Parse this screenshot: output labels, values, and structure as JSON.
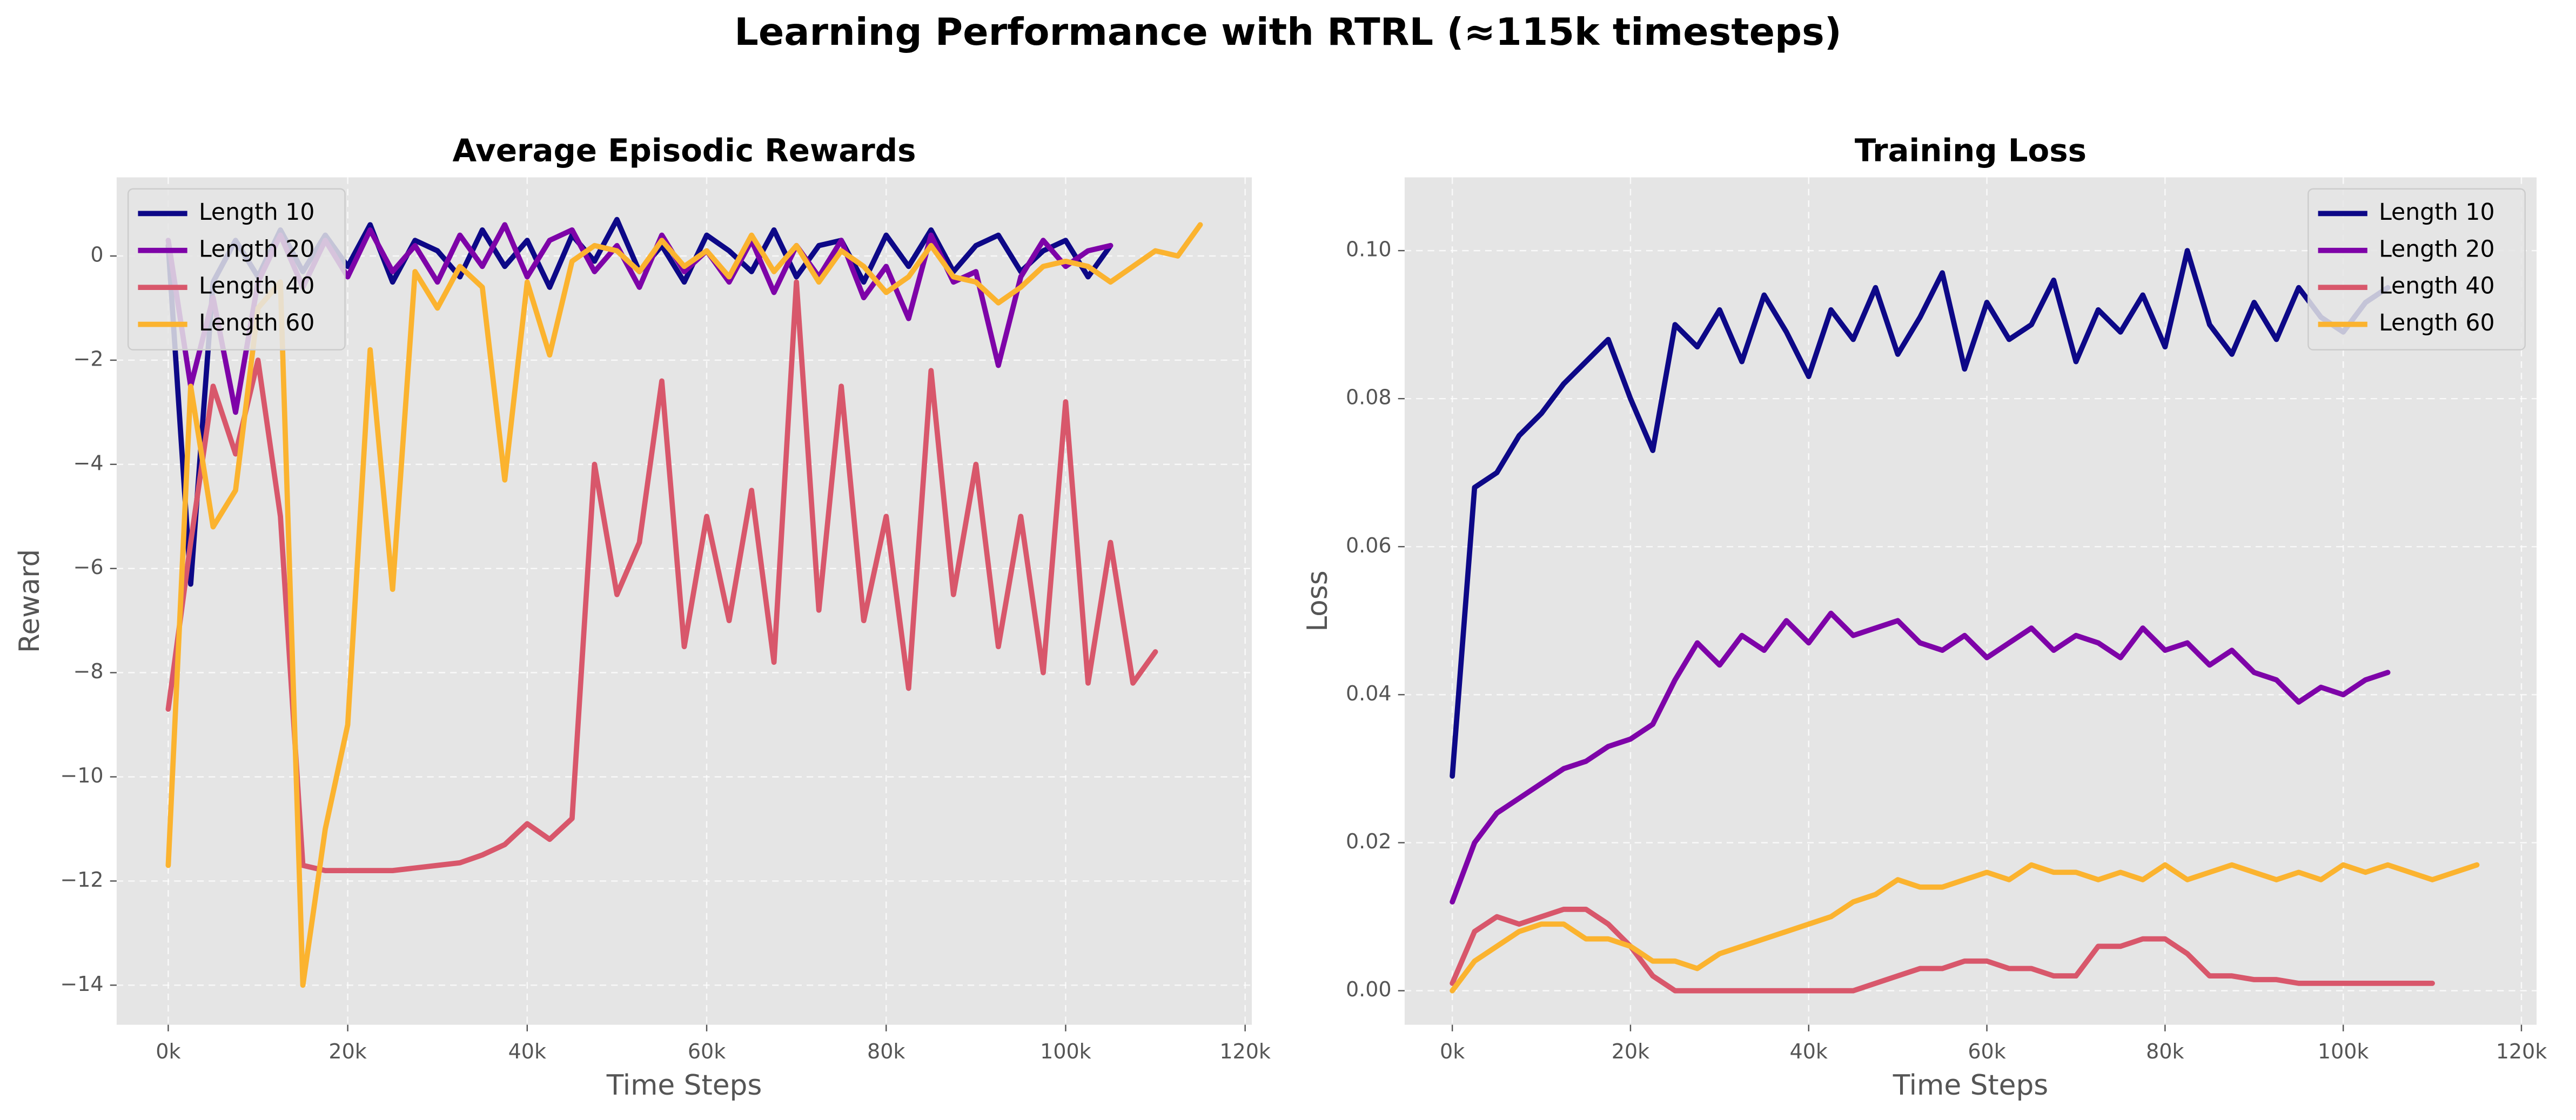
{
  "title": "Learning Performance with RTRL (≈115k timesteps)",
  "chart_data": [
    {
      "type": "line",
      "title": "Average Episodic Rewards",
      "xlabel": "Time Steps",
      "ylabel": "Reward",
      "xlim": [
        -5750,
        120750
      ],
      "ylim": [
        -14.76,
        1.51
      ],
      "xticks": [
        {
          "value": 0,
          "label": "0k"
        },
        {
          "value": 20000,
          "label": "20k"
        },
        {
          "value": 40000,
          "label": "40k"
        },
        {
          "value": 60000,
          "label": "60k"
        },
        {
          "value": 80000,
          "label": "80k"
        },
        {
          "value": 100000,
          "label": "100k"
        },
        {
          "value": 120000,
          "label": "120k"
        }
      ],
      "yticks": [
        {
          "value": -14,
          "label": "−14"
        },
        {
          "value": -12,
          "label": "−12"
        },
        {
          "value": -10,
          "label": "−10"
        },
        {
          "value": -8,
          "label": "−8"
        },
        {
          "value": -6,
          "label": "−6"
        },
        {
          "value": -4,
          "label": "−4"
        },
        {
          "value": -2,
          "label": "−2"
        },
        0
      ],
      "grid": true,
      "legend": "upper left",
      "series": [
        {
          "name": "Length 10",
          "color": "#0d0887",
          "x": [
            0,
            2500,
            5000,
            7500,
            10000,
            12500,
            15000,
            17500,
            20000,
            22500,
            25000,
            27500,
            30000,
            32500,
            35000,
            37500,
            40000,
            42500,
            45000,
            47500,
            50000,
            52500,
            55000,
            57500,
            60000,
            62500,
            65000,
            67500,
            70000,
            72500,
            75000,
            77500,
            80000,
            82500,
            85000,
            87500,
            90000,
            92500,
            95000,
            97500,
            100000,
            102500,
            105000
          ],
          "values": [
            0.2,
            -6.3,
            -0.5,
            0.3,
            -0.4,
            0.5,
            -0.3,
            0.4,
            -0.2,
            0.6,
            -0.5,
            0.3,
            0.1,
            -0.4,
            0.5,
            -0.2,
            0.3,
            -0.6,
            0.4,
            -0.1,
            0.7,
            -0.3,
            0.2,
            -0.5,
            0.4,
            0.1,
            -0.3,
            0.5,
            -0.4,
            0.2,
            0.3,
            -0.5,
            0.4,
            -0.2,
            0.5,
            -0.3,
            0.2,
            0.4,
            -0.3,
            0.1,
            0.3,
            -0.4,
            0.2
          ]
        },
        {
          "name": "Length 20",
          "color": "#7e03a8",
          "x": [
            0,
            2500,
            5000,
            7500,
            10000,
            12500,
            15000,
            17500,
            20000,
            22500,
            25000,
            27500,
            30000,
            32500,
            35000,
            37500,
            40000,
            42500,
            45000,
            47500,
            50000,
            52500,
            55000,
            57500,
            60000,
            62500,
            65000,
            67500,
            70000,
            72500,
            75000,
            77500,
            80000,
            82500,
            85000,
            87500,
            90000,
            92500,
            95000,
            97500,
            100000,
            102500,
            105000
          ],
          "values": [
            0.3,
            -2.5,
            -0.8,
            -3.0,
            -0.5,
            0.4,
            -0.6,
            0.3,
            -0.4,
            0.5,
            -0.3,
            0.2,
            -0.5,
            0.4,
            -0.2,
            0.6,
            -0.4,
            0.3,
            0.5,
            -0.3,
            0.2,
            -0.6,
            0.4,
            -0.3,
            0.1,
            -0.5,
            0.3,
            -0.7,
            0.2,
            -0.4,
            0.3,
            -0.8,
            -0.2,
            -1.2,
            0.4,
            -0.5,
            -0.3,
            -2.1,
            -0.4,
            0.3,
            -0.2,
            0.1,
            0.2
          ]
        },
        {
          "name": "Length 40",
          "color": "#d8576b",
          "x": [
            0,
            2500,
            5000,
            7500,
            10000,
            12500,
            15000,
            17500,
            20000,
            22500,
            25000,
            27500,
            30000,
            32500,
            35000,
            37500,
            40000,
            42500,
            45000,
            47500,
            50000,
            52500,
            55000,
            57500,
            60000,
            62500,
            65000,
            67500,
            70000,
            72500,
            75000,
            77500,
            80000,
            82500,
            85000,
            87500,
            90000,
            92500,
            95000,
            97500,
            100000,
            102500,
            105000,
            107500,
            110000
          ],
          "values": [
            -8.7,
            -5.5,
            -2.5,
            -3.8,
            -2.0,
            -5.0,
            -11.7,
            -11.8,
            -11.8,
            -11.8,
            -11.8,
            -11.75,
            -11.7,
            -11.65,
            -11.5,
            -11.3,
            -10.9,
            -11.2,
            -10.8,
            -4.0,
            -6.5,
            -5.5,
            -2.4,
            -7.5,
            -5.0,
            -7.0,
            -4.5,
            -7.8,
            -0.5,
            -6.8,
            -2.5,
            -7.0,
            -5.0,
            -8.3,
            -2.2,
            -6.5,
            -4.0,
            -7.5,
            -5.0,
            -8.0,
            -2.8,
            -8.2,
            -5.5,
            -8.2,
            -7.6
          ]
        },
        {
          "name": "Length 60",
          "color": "#fbb32f",
          "x": [
            0,
            2500,
            5000,
            7500,
            10000,
            12500,
            15000,
            17500,
            20000,
            22500,
            25000,
            27500,
            30000,
            32500,
            35000,
            37500,
            40000,
            42500,
            45000,
            47500,
            50000,
            52500,
            55000,
            57500,
            60000,
            62500,
            65000,
            67500,
            70000,
            72500,
            75000,
            77500,
            80000,
            82500,
            85000,
            87500,
            90000,
            92500,
            95000,
            97500,
            100000,
            102500,
            105000,
            107500,
            110000,
            112500,
            115000
          ],
          "values": [
            -11.7,
            -2.5,
            -5.2,
            -4.5,
            -1.0,
            -0.5,
            -14.0,
            -11.0,
            -9.0,
            -1.8,
            -6.4,
            -0.3,
            -1.0,
            -0.2,
            -0.6,
            -4.3,
            -0.5,
            -1.9,
            -0.1,
            0.2,
            0.1,
            -0.3,
            0.3,
            -0.2,
            0.1,
            -0.4,
            0.4,
            -0.3,
            0.2,
            -0.5,
            0.1,
            -0.2,
            -0.7,
            -0.4,
            0.2,
            -0.4,
            -0.5,
            -0.9,
            -0.6,
            -0.2,
            -0.1,
            -0.2,
            -0.5,
            -0.2,
            0.1,
            0.0,
            0.6
          ]
        }
      ]
    },
    {
      "type": "line",
      "title": "Training Loss",
      "xlabel": "Time Steps",
      "ylabel": "Loss",
      "xlim": [
        -5350,
        121700
      ],
      "ylim": [
        -0.0046,
        0.1099
      ],
      "xticks": [
        {
          "value": 0,
          "label": "0k"
        },
        {
          "value": 20000,
          "label": "20k"
        },
        {
          "value": 40000,
          "label": "40k"
        },
        {
          "value": 60000,
          "label": "60k"
        },
        {
          "value": 80000,
          "label": "80k"
        },
        {
          "value": 100000,
          "label": "100k"
        },
        {
          "value": 120000,
          "label": "120k"
        }
      ],
      "yticks": [
        {
          "value": 0,
          "label": "0.00"
        },
        {
          "value": 0.02,
          "label": "0.02"
        },
        {
          "value": 0.04,
          "label": "0.04"
        },
        {
          "value": 0.06,
          "label": "0.06"
        },
        {
          "value": 0.08,
          "label": "0.08"
        },
        {
          "value": 0.1,
          "label": "0.10"
        }
      ],
      "grid": true,
      "legend": "upper right",
      "series": [
        {
          "name": "Length 10",
          "color": "#0d0887",
          "x": [
            0,
            2500,
            5000,
            7500,
            10000,
            12500,
            15000,
            17500,
            20000,
            22500,
            25000,
            27500,
            30000,
            32500,
            35000,
            37500,
            40000,
            42500,
            45000,
            47500,
            50000,
            52500,
            55000,
            57500,
            60000,
            62500,
            65000,
            67500,
            70000,
            72500,
            75000,
            77500,
            80000,
            82500,
            85000,
            87500,
            90000,
            92500,
            95000,
            97500,
            100000,
            102500,
            105000
          ],
          "values": [
            0.029,
            0.068,
            0.07,
            0.075,
            0.078,
            0.082,
            0.085,
            0.088,
            0.08,
            0.073,
            0.09,
            0.087,
            0.092,
            0.085,
            0.094,
            0.089,
            0.083,
            0.092,
            0.088,
            0.095,
            0.086,
            0.091,
            0.097,
            0.084,
            0.093,
            0.088,
            0.09,
            0.096,
            0.085,
            0.092,
            0.089,
            0.094,
            0.087,
            0.1,
            0.09,
            0.086,
            0.093,
            0.088,
            0.095,
            0.091,
            0.089,
            0.093,
            0.095
          ]
        },
        {
          "name": "Length 20",
          "color": "#7e03a8",
          "x": [
            0,
            2500,
            5000,
            7500,
            10000,
            12500,
            15000,
            17500,
            20000,
            22500,
            25000,
            27500,
            30000,
            32500,
            35000,
            37500,
            40000,
            42500,
            45000,
            47500,
            50000,
            52500,
            55000,
            57500,
            60000,
            62500,
            65000,
            67500,
            70000,
            72500,
            75000,
            77500,
            80000,
            82500,
            85000,
            87500,
            90000,
            92500,
            95000,
            97500,
            100000,
            102500,
            105000
          ],
          "values": [
            0.012,
            0.02,
            0.024,
            0.026,
            0.028,
            0.03,
            0.031,
            0.033,
            0.034,
            0.036,
            0.042,
            0.047,
            0.044,
            0.048,
            0.046,
            0.05,
            0.047,
            0.051,
            0.048,
            0.049,
            0.05,
            0.047,
            0.046,
            0.048,
            0.045,
            0.047,
            0.049,
            0.046,
            0.048,
            0.047,
            0.045,
            0.049,
            0.046,
            0.047,
            0.044,
            0.046,
            0.043,
            0.042,
            0.039,
            0.041,
            0.04,
            0.042,
            0.043
          ]
        },
        {
          "name": "Length 40",
          "color": "#d8576b",
          "x": [
            0,
            2500,
            5000,
            7500,
            10000,
            12500,
            15000,
            17500,
            20000,
            22500,
            25000,
            27500,
            30000,
            32500,
            35000,
            37500,
            40000,
            42500,
            45000,
            47500,
            50000,
            52500,
            55000,
            57500,
            60000,
            62500,
            65000,
            67500,
            70000,
            72500,
            75000,
            77500,
            80000,
            82500,
            85000,
            87500,
            90000,
            92500,
            95000,
            97500,
            100000,
            102500,
            105000,
            107500,
            110000
          ],
          "values": [
            0.001,
            0.008,
            0.01,
            0.009,
            0.01,
            0.011,
            0.011,
            0.009,
            0.006,
            0.002,
            0.0,
            0.0,
            0.0,
            0.0,
            0.0,
            0.0,
            0.0,
            0.0,
            0.0,
            0.001,
            0.002,
            0.003,
            0.003,
            0.004,
            0.004,
            0.003,
            0.003,
            0.002,
            0.002,
            0.006,
            0.006,
            0.007,
            0.007,
            0.005,
            0.002,
            0.002,
            0.0015,
            0.0015,
            0.001,
            0.001,
            0.001,
            0.001,
            0.001,
            0.001,
            0.001
          ]
        },
        {
          "name": "Length 60",
          "color": "#fbb32f",
          "x": [
            0,
            2500,
            5000,
            7500,
            10000,
            12500,
            15000,
            17500,
            20000,
            22500,
            25000,
            27500,
            30000,
            32500,
            35000,
            37500,
            40000,
            42500,
            45000,
            47500,
            50000,
            52500,
            55000,
            57500,
            60000,
            62500,
            65000,
            67500,
            70000,
            72500,
            75000,
            77500,
            80000,
            82500,
            85000,
            87500,
            90000,
            92500,
            95000,
            97500,
            100000,
            102500,
            105000,
            107500,
            110000,
            112500,
            115000
          ],
          "values": [
            0.0,
            0.004,
            0.006,
            0.008,
            0.009,
            0.009,
            0.007,
            0.007,
            0.006,
            0.004,
            0.004,
            0.003,
            0.005,
            0.006,
            0.007,
            0.008,
            0.009,
            0.01,
            0.012,
            0.013,
            0.015,
            0.014,
            0.014,
            0.015,
            0.016,
            0.015,
            0.017,
            0.016,
            0.016,
            0.015,
            0.016,
            0.015,
            0.017,
            0.015,
            0.016,
            0.017,
            0.016,
            0.015,
            0.016,
            0.015,
            0.017,
            0.016,
            0.017,
            0.016,
            0.015,
            0.016,
            0.017
          ]
        }
      ]
    }
  ]
}
